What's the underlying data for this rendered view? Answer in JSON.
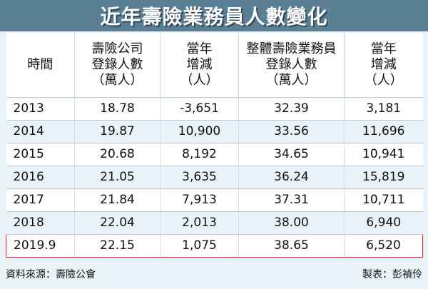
{
  "title": "近年壽險業務員人數變化",
  "headers": [
    [
      "時間"
    ],
    [
      "壽險公司",
      "登錄人數",
      "（萬人）"
    ],
    [
      "當年",
      "增減",
      "（人）"
    ],
    [
      "整體壽險業務員",
      "登錄人數",
      "（萬人）"
    ],
    [
      "當年",
      "增減",
      "（人）"
    ]
  ],
  "rows": [
    [
      "2013",
      "18.78",
      "-3,651",
      "32.39",
      "3,181"
    ],
    [
      "2014",
      "19.87",
      "10,900",
      "33.56",
      "11,696"
    ],
    [
      "2015",
      "20.68",
      "8,192",
      "34.65",
      "10,941"
    ],
    [
      "2016",
      "21.05",
      "3,635",
      "36.24",
      "15,819"
    ],
    [
      "2017",
      "21.84",
      "7,913",
      "37.31",
      "10,711"
    ],
    [
      "2018",
      "22.04",
      "2,013",
      "38.00",
      "6,940"
    ],
    [
      "2019.9",
      "22.15",
      "1,075",
      "38.65",
      "6,520"
    ]
  ],
  "footer": {
    "source": "資料來源：壽險公會",
    "maker": "製表：彭禎伶"
  },
  "colors": {
    "title_bg": "#5a7f95",
    "row_alt": "#e9f2f7",
    "highlight_border": "#b23a3a"
  }
}
